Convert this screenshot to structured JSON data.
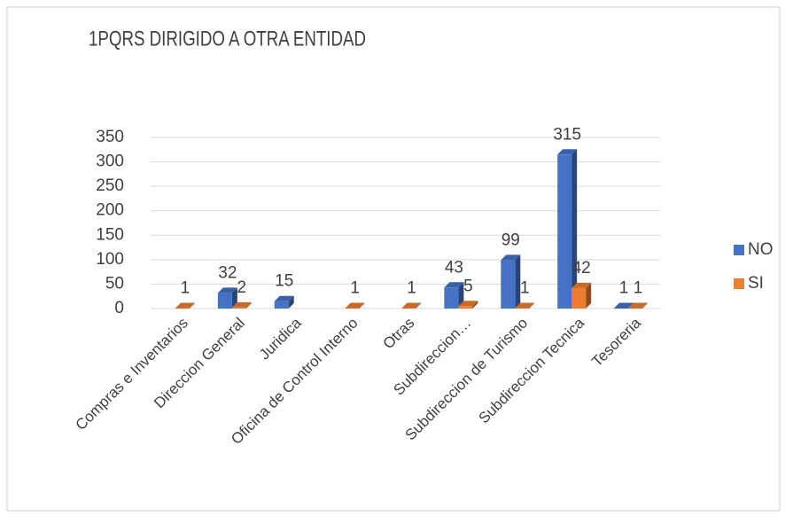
{
  "chart_data": {
    "type": "bar",
    "title": "1PQRS DIRIGIDO A OTRA ENTIDAD",
    "categories": [
      "Compras e Inventarios",
      "Direccion General",
      "Juridica",
      "Oficina de Control Interno",
      "Otras",
      "Subdireccion…",
      "Subdireccion de Turismo",
      "Subdireccion Tecnica",
      "Tesoreria"
    ],
    "series": [
      {
        "name": "NO",
        "color": "#4472c4",
        "values": [
          null,
          32,
          15,
          null,
          null,
          43,
          99,
          315,
          1
        ]
      },
      {
        "name": "SI",
        "color": "#ed7d31",
        "values": [
          1,
          2,
          null,
          1,
          1,
          5,
          1,
          42,
          1
        ]
      }
    ],
    "ylim": [
      0,
      350
    ],
    "yticks": [
      0,
      50,
      100,
      150,
      200,
      250,
      300,
      350
    ],
    "grid": true,
    "legend": "right"
  }
}
